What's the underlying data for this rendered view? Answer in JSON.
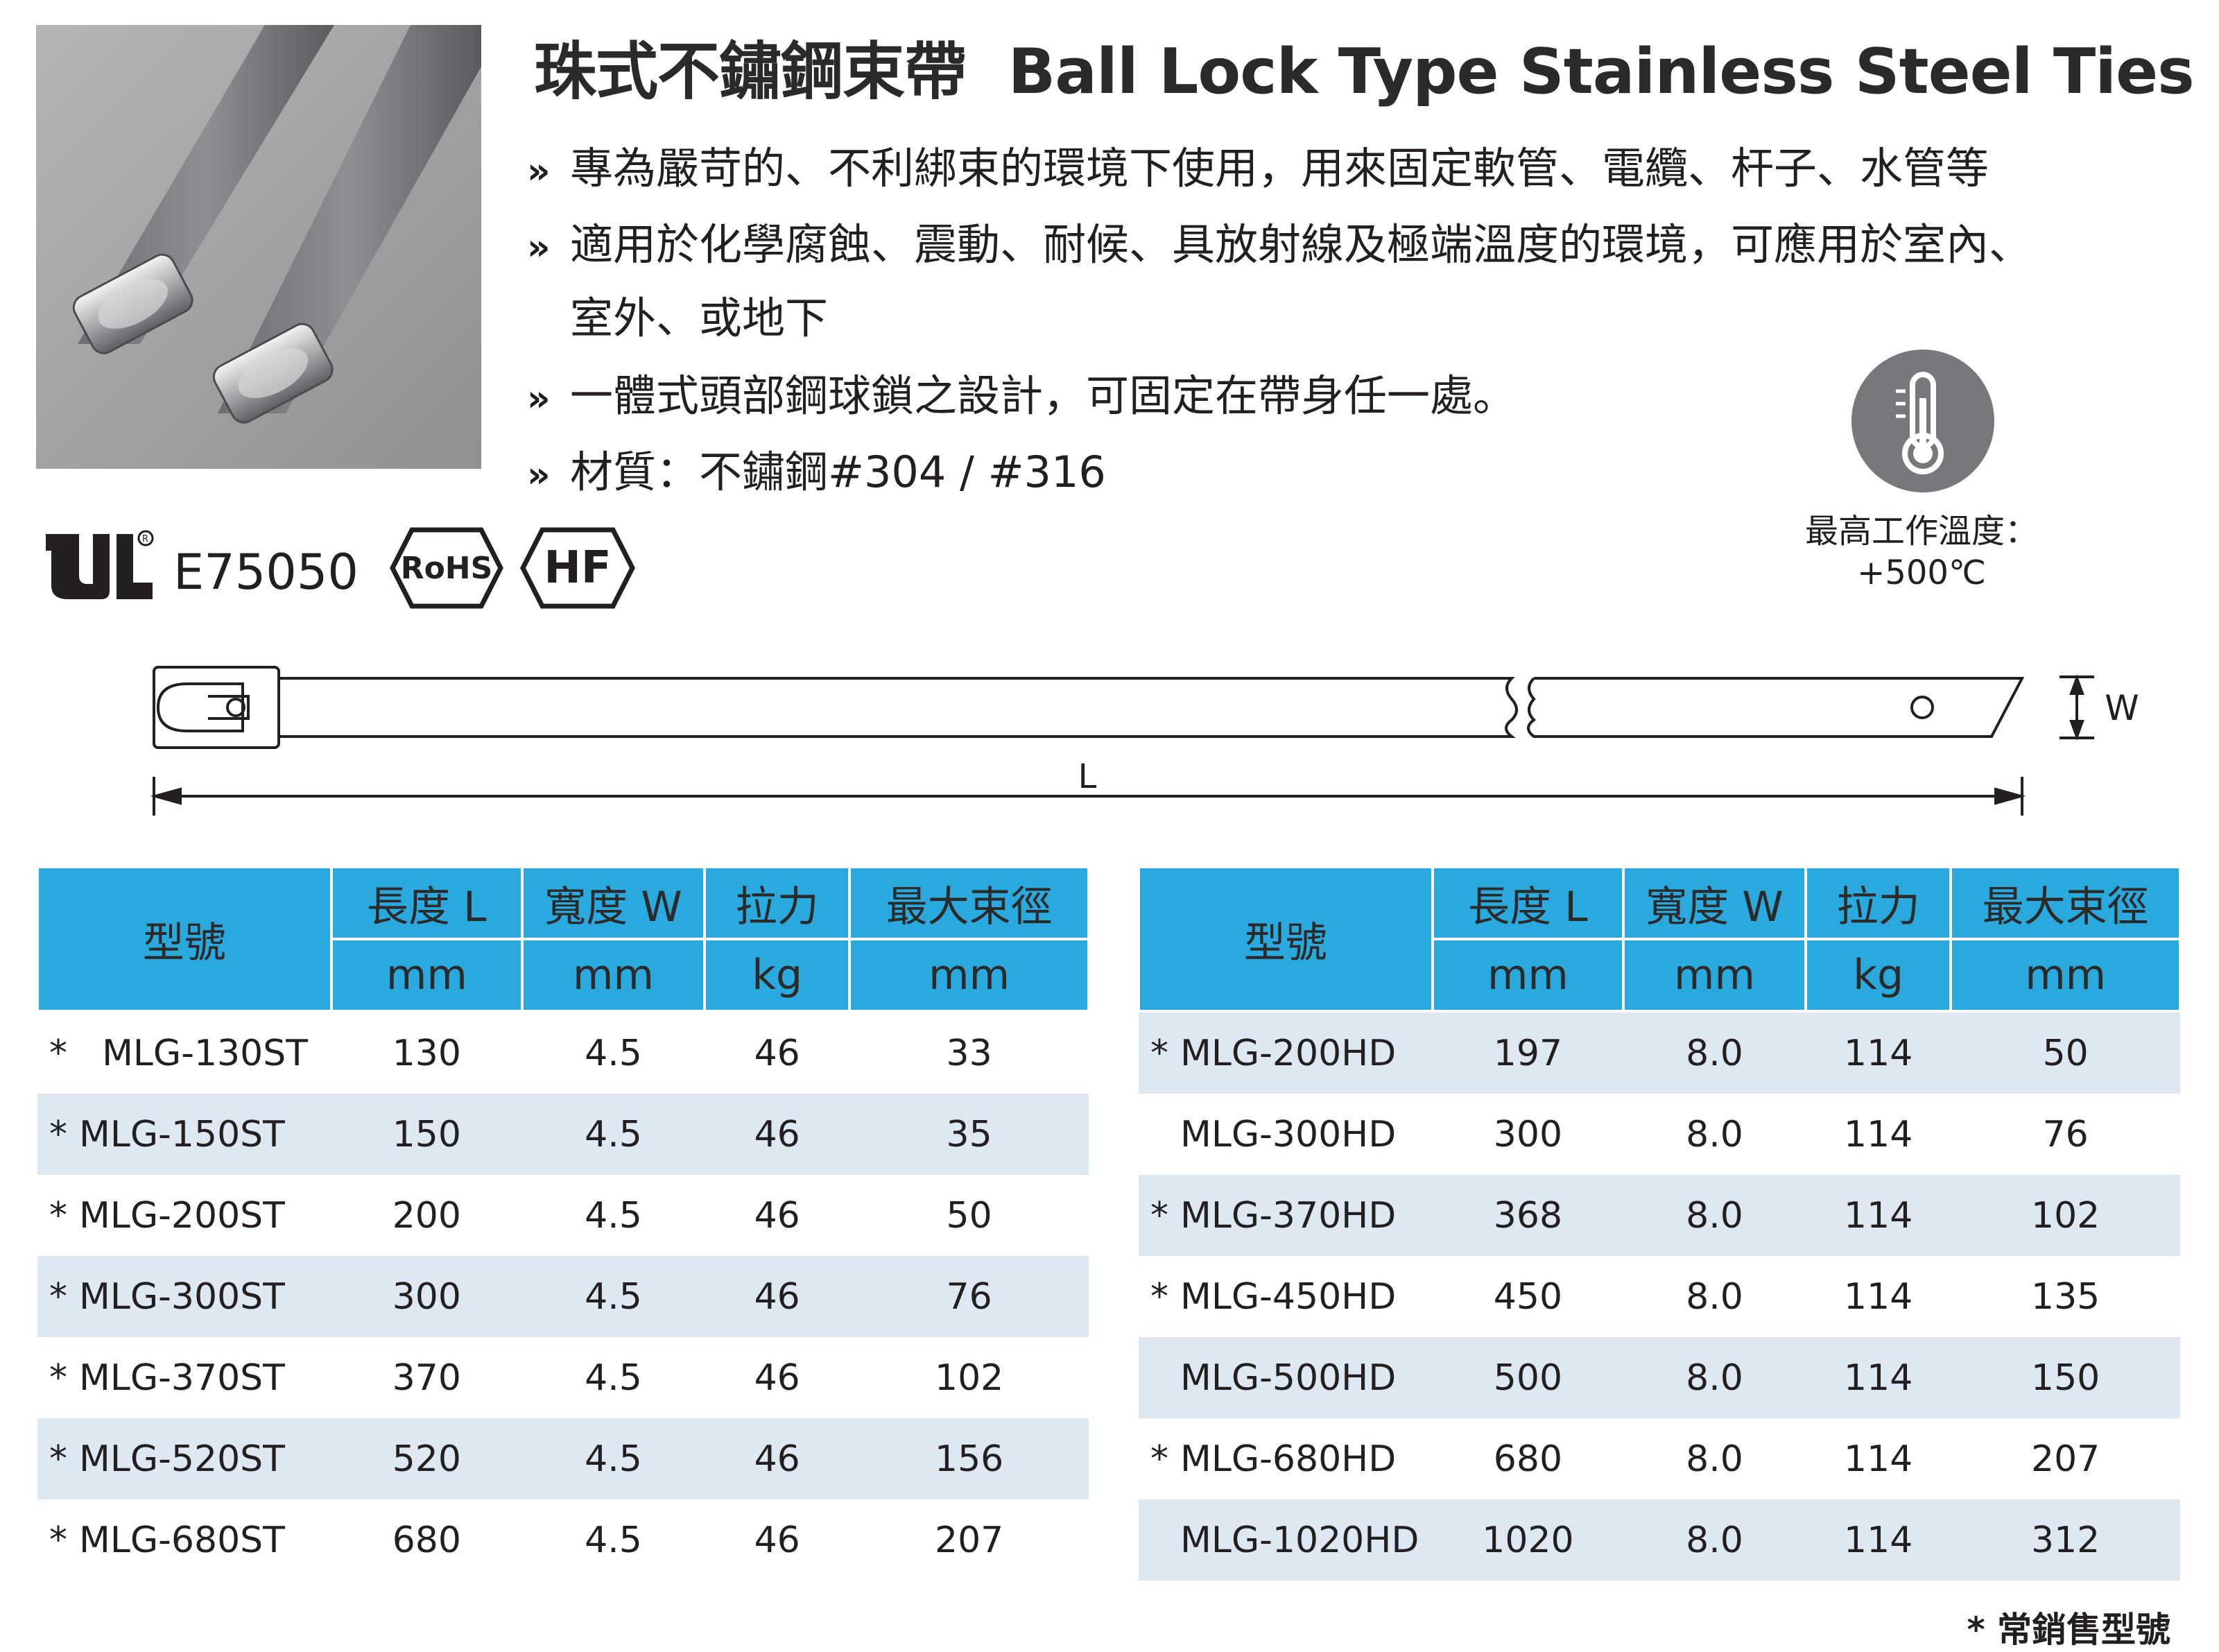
{
  "title": {
    "zh": "珠式不鏽鋼束帶",
    "en": "Ball Lock Type Stainless Steel Ties"
  },
  "bullets": [
    {
      "mark": "»",
      "lines": [
        "專為嚴苛的、不利綁束的環境下使用，用來固定軟管、電纜、杆子、水管等"
      ]
    },
    {
      "mark": "»",
      "lines": [
        "適用於化學腐蝕、震動、耐候、具放射線及極端溫度的環境，可應用於室內、",
        "室外、或地下"
      ]
    },
    {
      "mark": "»",
      "lines": [
        "一體式頭部鋼球鎖之設計，可固定在帶身任一處。"
      ]
    },
    {
      "mark": "»",
      "lines": [
        "材質：不鏽鋼#304 / #316"
      ]
    }
  ],
  "temperature": {
    "icon": "thermometer-icon",
    "label": "最高工作溫度：",
    "value": "+500℃"
  },
  "certifications": {
    "ul_number": "E75050",
    "ul_icon": "ul-logo",
    "rohs": "RoHS",
    "hf": "HF"
  },
  "diagram": {
    "length_label": "L",
    "width_label": "W"
  },
  "table_headers": {
    "model": "型號",
    "length": "長度 L",
    "width": "寬度 W",
    "tensile": "拉力",
    "bundle": "最大束徑",
    "length_unit": "mm",
    "width_unit": "mm",
    "tensile_unit": "kg",
    "bundle_unit": "mm"
  },
  "table_left": [
    {
      "star": "*",
      "model": "MLG-130ST",
      "L": "130",
      "W": "4.5",
      "kg": "46",
      "dia": "33"
    },
    {
      "star": "*",
      "model": "MLG-150ST",
      "L": "150",
      "W": "4.5",
      "kg": "46",
      "dia": "35"
    },
    {
      "star": "*",
      "model": "MLG-200ST",
      "L": "200",
      "W": "4.5",
      "kg": "46",
      "dia": "50"
    },
    {
      "star": "*",
      "model": "MLG-300ST",
      "L": "300",
      "W": "4.5",
      "kg": "46",
      "dia": "76"
    },
    {
      "star": "*",
      "model": "MLG-370ST",
      "L": "370",
      "W": "4.5",
      "kg": "46",
      "dia": "102"
    },
    {
      "star": "*",
      "model": "MLG-520ST",
      "L": "520",
      "W": "4.5",
      "kg": "46",
      "dia": "156"
    },
    {
      "star": "*",
      "model": "MLG-680ST",
      "L": "680",
      "W": "4.5",
      "kg": "46",
      "dia": "207"
    }
  ],
  "table_right": [
    {
      "star": "*",
      "model": "MLG-200HD",
      "L": "197",
      "W": "8.0",
      "kg": "114",
      "dia": "50"
    },
    {
      "star": "",
      "model": "MLG-300HD",
      "L": "300",
      "W": "8.0",
      "kg": "114",
      "dia": "76"
    },
    {
      "star": "*",
      "model": "MLG-370HD",
      "L": "368",
      "W": "8.0",
      "kg": "114",
      "dia": "102"
    },
    {
      "star": "*",
      "model": "MLG-450HD",
      "L": "450",
      "W": "8.0",
      "kg": "114",
      "dia": "135"
    },
    {
      "star": "",
      "model": "MLG-500HD",
      "L": "500",
      "W": "8.0",
      "kg": "114",
      "dia": "150"
    },
    {
      "star": "*",
      "model": "MLG-680HD",
      "L": "680",
      "W": "8.0",
      "kg": "114",
      "dia": "207"
    },
    {
      "star": "",
      "model": "MLG-1020HD",
      "L": "1020",
      "W": "8.0",
      "kg": "114",
      "dia": "312"
    }
  ],
  "footnote": "* 常銷售型號",
  "colors": {
    "header_blue": "#2aa9df",
    "row_shade": "#dde8f2",
    "icon_gray": "#77787b"
  }
}
